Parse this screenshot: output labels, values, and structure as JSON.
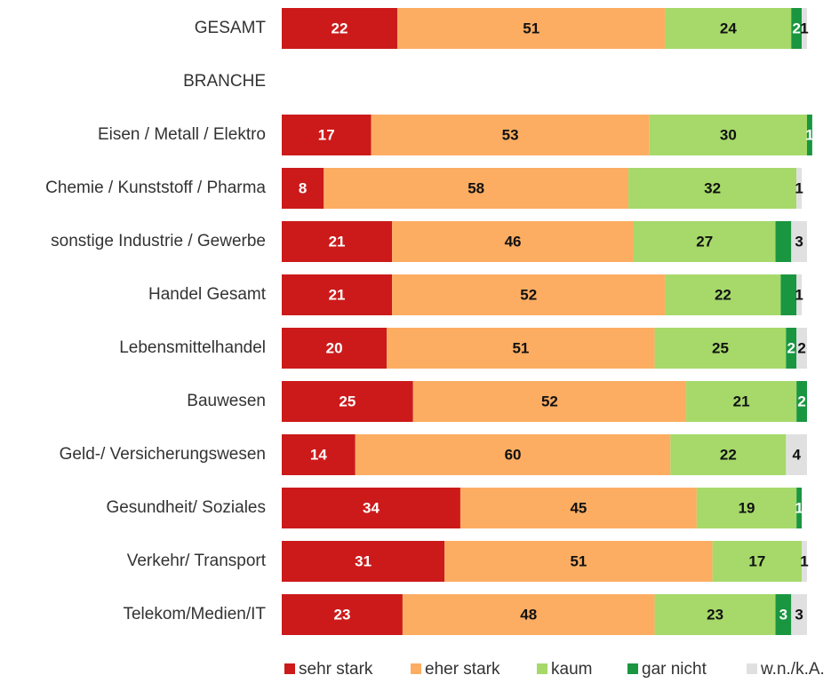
{
  "chart_data": {
    "type": "stacked-bar-horizontal",
    "categories": [
      "GESAMT",
      "BRANCHE",
      "Eisen / Metall / Elektro",
      "Chemie / Kunststoff / Pharma",
      "sonstige Industrie / Gewerbe",
      "Handel Gesamt",
      "Lebensmittelhandel",
      "Bauwesen",
      "Geld-/ Versicherungswesen",
      "Gesundheit/ Soziales",
      "Verkehr/ Transport",
      "Telekom/Medien/IT"
    ],
    "xlim": [
      0,
      100
    ],
    "legend": "bottom",
    "series": [
      {
        "name": "sehr stark",
        "color": "#cc1a1a",
        "values": [
          22,
          null,
          17,
          8,
          21,
          21,
          20,
          25,
          14,
          34,
          31,
          23
        ]
      },
      {
        "name": "eher stark",
        "color": "#fdad62",
        "values": [
          51,
          null,
          53,
          58,
          46,
          52,
          51,
          52,
          60,
          45,
          51,
          48
        ]
      },
      {
        "name": "kaum",
        "color": "#a6d96a",
        "values": [
          24,
          null,
          30,
          32,
          27,
          22,
          25,
          21,
          22,
          19,
          17,
          23
        ]
      },
      {
        "name": "gar nicht",
        "color": "#1a9641",
        "values": [
          2,
          null,
          1,
          0,
          3,
          3,
          2,
          2,
          0,
          1,
          0,
          3
        ],
        "value_labels": [
          "2",
          null,
          "1",
          null,
          null,
          null,
          "2",
          "2",
          null,
          "1",
          null,
          "3"
        ]
      },
      {
        "name": "w.n./k.A.",
        "color": "#e0e0e0",
        "values": [
          1,
          null,
          0,
          1,
          3,
          1,
          2,
          0,
          4,
          0,
          1,
          3
        ],
        "value_labels": [
          "1",
          null,
          null,
          "1",
          "3",
          "1",
          "2",
          null,
          "4",
          null,
          "1",
          "3"
        ]
      }
    ]
  }
}
